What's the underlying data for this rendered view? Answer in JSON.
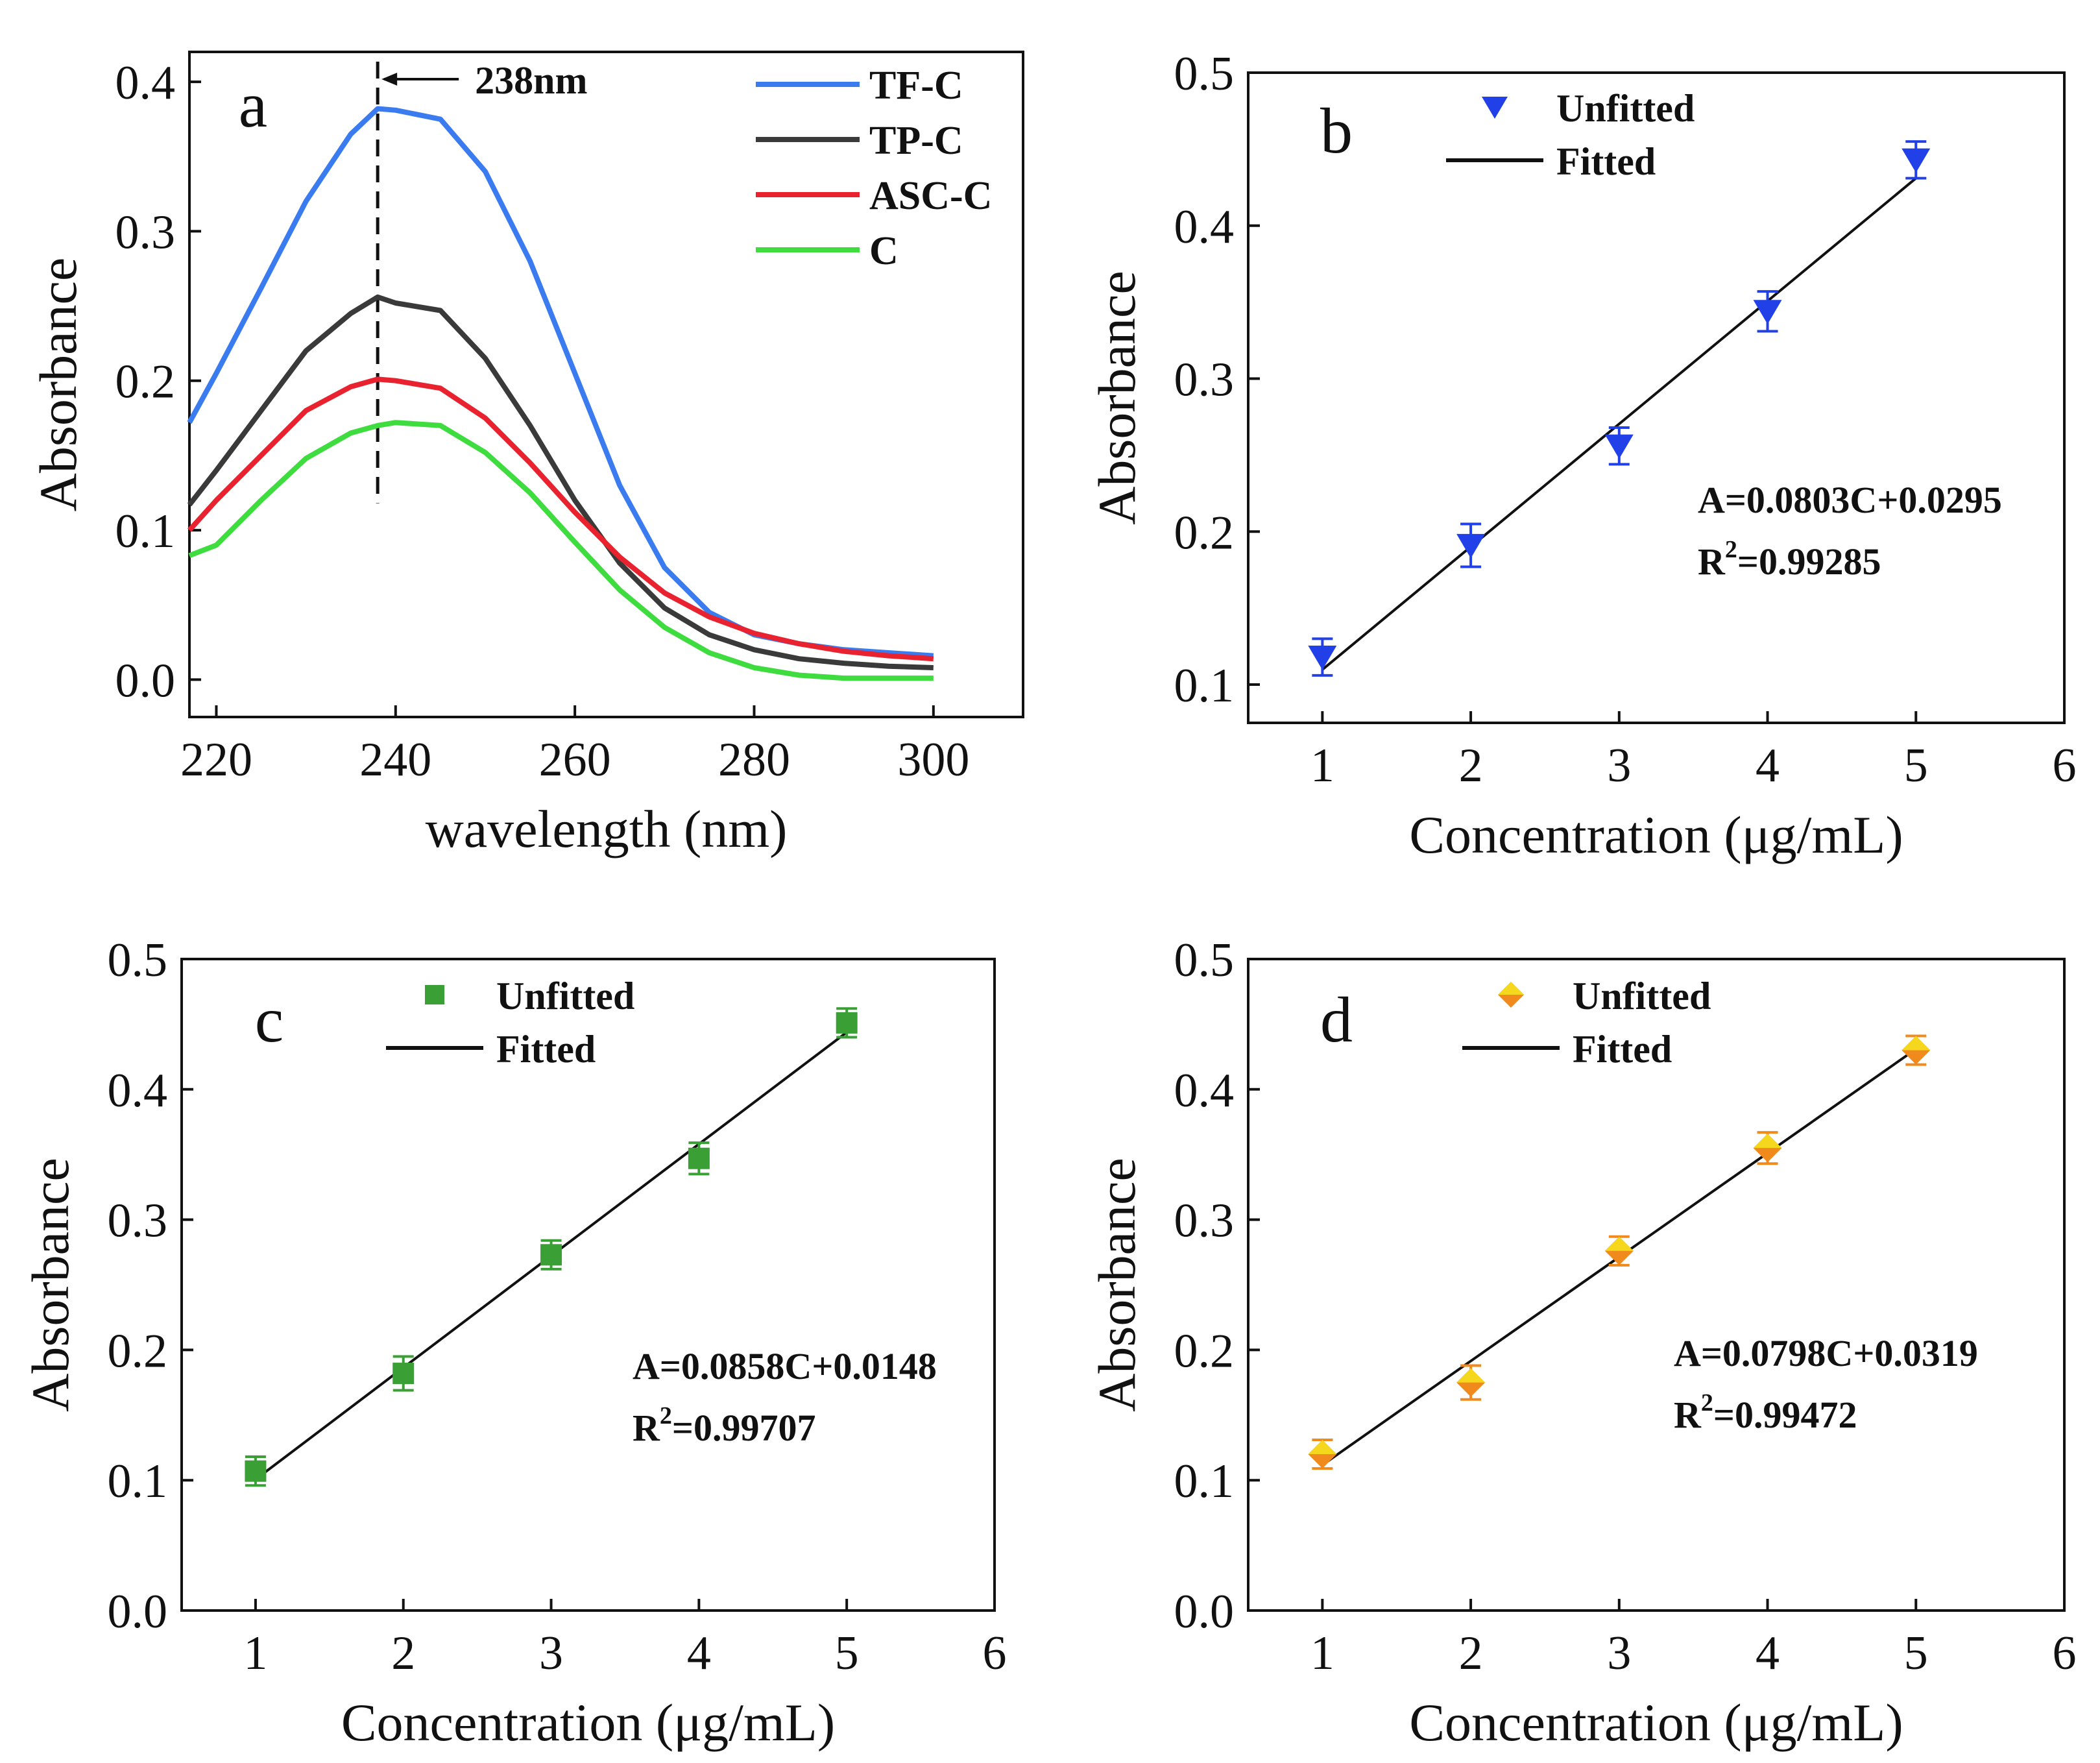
{
  "chart_data": [
    {
      "panel": "a",
      "type": "line",
      "xlabel": "wavelength (nm)",
      "ylabel": "Absorbance",
      "xlim": [
        217,
        310
      ],
      "ylim": [
        -0.025,
        0.42
      ],
      "xticks": [
        "220",
        "240",
        "260",
        "280",
        "300"
      ],
      "yticks": [
        "0.0",
        "0.1",
        "0.2",
        "0.3",
        "0.4"
      ],
      "annotation": "238nm",
      "marker_x": 238,
      "x": [
        217,
        220,
        225,
        230,
        235,
        238,
        240,
        245,
        250,
        255,
        260,
        265,
        270,
        275,
        280,
        285,
        290,
        295,
        300
      ],
      "series": [
        {
          "name": "TF-C",
          "color": "#3a7cf0",
          "values": [
            0.172,
            0.205,
            0.262,
            0.32,
            0.365,
            0.382,
            0.381,
            0.375,
            0.34,
            0.28,
            0.205,
            0.13,
            0.075,
            0.045,
            0.03,
            0.024,
            0.02,
            0.018,
            0.016
          ]
        },
        {
          "name": "TP-C",
          "color": "#3a3a3a",
          "values": [
            0.117,
            0.14,
            0.18,
            0.22,
            0.245,
            0.256,
            0.252,
            0.247,
            0.215,
            0.17,
            0.12,
            0.078,
            0.048,
            0.03,
            0.02,
            0.014,
            0.011,
            0.009,
            0.008
          ]
        },
        {
          "name": "ASC-C",
          "color": "#e8232f",
          "values": [
            0.1,
            0.12,
            0.15,
            0.18,
            0.196,
            0.201,
            0.2,
            0.195,
            0.175,
            0.145,
            0.112,
            0.082,
            0.058,
            0.042,
            0.031,
            0.024,
            0.019,
            0.016,
            0.014
          ]
        },
        {
          "name": "C",
          "color": "#3fdc3f",
          "values": [
            0.083,
            0.09,
            0.12,
            0.148,
            0.165,
            0.17,
            0.172,
            0.17,
            0.152,
            0.125,
            0.092,
            0.06,
            0.035,
            0.018,
            0.008,
            0.003,
            0.001,
            0.001,
            0.001
          ]
        }
      ]
    },
    {
      "panel": "b",
      "type": "scatter",
      "xlabel": "Concentration (μg/mL)",
      "ylabel": "Absorbance",
      "xlim": [
        0.5,
        6
      ],
      "ylim": [
        0.075,
        0.5
      ],
      "xticks": [
        "1",
        "2",
        "3",
        "4",
        "5",
        "6"
      ],
      "yticks": [
        "0.1",
        "0.2",
        "0.3",
        "0.4",
        "0.5"
      ],
      "marker": "triangle-down",
      "marker_color": "#2140e8",
      "legend": {
        "points": "Unfitted",
        "line": "Fitted"
      },
      "equation": "A=0.0803C+0.0295",
      "r2_prefix": "R",
      "r2_sup": "2",
      "r2_value": "=0.99285",
      "x": [
        1,
        2,
        3,
        4,
        5
      ],
      "y": [
        0.118,
        0.191,
        0.256,
        0.344,
        0.443
      ],
      "err": [
        0.012,
        0.014,
        0.012,
        0.013,
        0.012
      ],
      "fit": {
        "slope": 0.0803,
        "intercept": 0.0295,
        "x_range": [
          1,
          5
        ]
      }
    },
    {
      "panel": "c",
      "type": "scatter",
      "xlabel": "Concentration (μg/mL)",
      "ylabel": "Absorbance",
      "xlim": [
        0.5,
        6
      ],
      "ylim": [
        0,
        0.5
      ],
      "xticks": [
        "1",
        "2",
        "3",
        "4",
        "5",
        "6"
      ],
      "yticks": [
        "0.0",
        "0.1",
        "0.2",
        "0.3",
        "0.4",
        "0.5"
      ],
      "marker": "square",
      "marker_color": "#3aa035",
      "legend": {
        "points": "Unfitted",
        "line": "Fitted"
      },
      "equation": "A=0.0858C+0.0148",
      "r2_prefix": "R",
      "r2_sup": "2",
      "r2_value": "=0.99707",
      "x": [
        1,
        2,
        3,
        4,
        5
      ],
      "y": [
        0.107,
        0.182,
        0.273,
        0.347,
        0.451
      ],
      "err": [
        0.011,
        0.013,
        0.011,
        0.012,
        0.011
      ],
      "fit": {
        "slope": 0.0858,
        "intercept": 0.0148,
        "x_range": [
          1,
          5
        ]
      }
    },
    {
      "panel": "d",
      "type": "scatter",
      "xlabel": "Concentration (μg/mL)",
      "ylabel": "Absorbance",
      "xlim": [
        0.5,
        6
      ],
      "ylim": [
        0,
        0.5
      ],
      "xticks": [
        "1",
        "2",
        "3",
        "4",
        "5",
        "6"
      ],
      "yticks": [
        "0.0",
        "0.1",
        "0.2",
        "0.3",
        "0.4",
        "0.5"
      ],
      "marker": "diamond",
      "marker_color": "#f08a1c",
      "marker_color_inner": "#f5d81e",
      "legend": {
        "points": "Unfitted",
        "line": "Fitted"
      },
      "equation": "A=0.0798C+0.0319",
      "r2_prefix": "R",
      "r2_sup": "2",
      "r2_value": "=0.99472",
      "x": [
        1,
        2,
        3,
        4,
        5
      ],
      "y": [
        0.12,
        0.175,
        0.276,
        0.355,
        0.43
      ],
      "err": [
        0.011,
        0.013,
        0.011,
        0.012,
        0.011
      ],
      "fit": {
        "slope": 0.0798,
        "intercept": 0.0319,
        "x_range": [
          1,
          5
        ]
      }
    }
  ]
}
